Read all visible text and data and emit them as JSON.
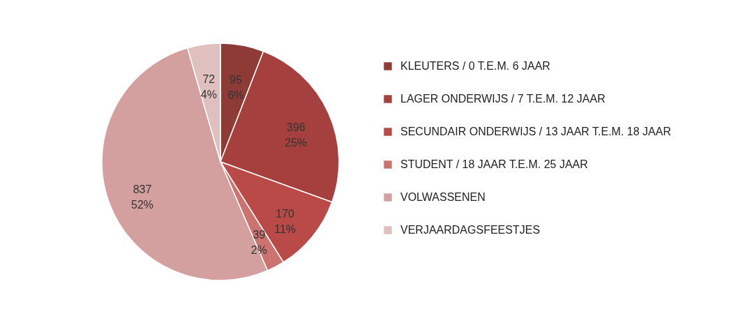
{
  "chart_data": {
    "type": "pie",
    "categories": [
      "KLEUTERS / 0 T.E.M. 6 JAAR",
      "LAGER ONDERWIJS / 7 T.E.M. 12 JAAR",
      "SECUNDAIR ONDERWIJS / 13 JAAR T.E.M. 18 JAAR",
      "STUDENT / 18 JAAR T.E.M. 25 JAAR",
      "VOLWASSENEN",
      "VERJAARDAGSFEESTJES"
    ],
    "values": [
      95,
      396,
      170,
      39,
      837,
      72
    ],
    "value_labels": [
      "95\n6%",
      "396\n25%",
      "170\n11%",
      "39\n2%",
      "837\n52%",
      "72\n4%"
    ],
    "colors": [
      "#8e3b37",
      "#a5403e",
      "#b94a48",
      "#cc7370",
      "#d4a09f",
      "#e0c0bf"
    ],
    "legend": "right"
  }
}
